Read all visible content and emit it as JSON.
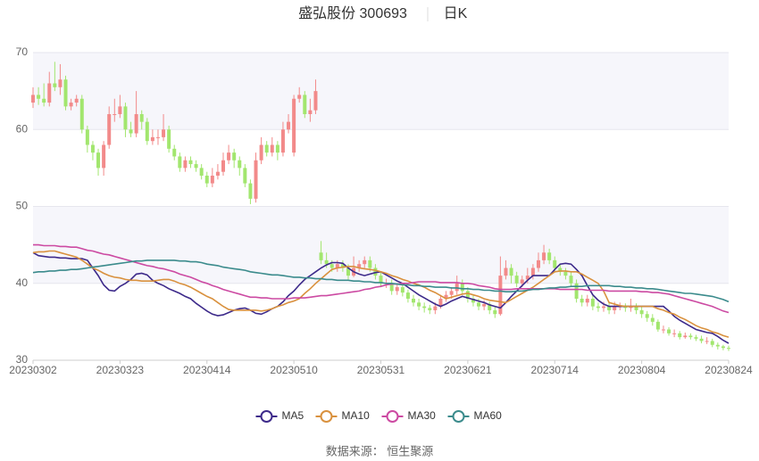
{
  "chart_data": {
    "type": "candlestick",
    "title": "盛弘股份 300693",
    "subtitle": "日K",
    "source": "数据来源： 恒生聚源",
    "categories": [
      "20230302",
      null,
      null,
      null,
      null,
      null,
      null,
      null,
      null,
      null,
      null,
      null,
      null,
      null,
      null,
      null,
      "20230323",
      null,
      null,
      null,
      null,
      null,
      null,
      null,
      null,
      null,
      null,
      null,
      null,
      null,
      null,
      null,
      "20230414",
      null,
      null,
      null,
      null,
      null,
      null,
      null,
      null,
      null,
      null,
      null,
      null,
      null,
      null,
      null,
      "20230510",
      null,
      null,
      null,
      null,
      null,
      null,
      null,
      null,
      null,
      null,
      null,
      null,
      null,
      null,
      null,
      "20230531",
      null,
      null,
      null,
      null,
      null,
      null,
      null,
      null,
      null,
      null,
      null,
      null,
      null,
      null,
      null,
      "20230621",
      null,
      null,
      null,
      null,
      null,
      null,
      null,
      null,
      null,
      null,
      null,
      null,
      null,
      null,
      null,
      "20230714",
      null,
      null,
      null,
      null,
      null,
      null,
      null,
      null,
      null,
      null,
      null,
      null,
      null,
      null,
      null,
      "20230804",
      null,
      null,
      null,
      null,
      null,
      null,
      null,
      null,
      null,
      null,
      null,
      null,
      null,
      null,
      null,
      "20230824"
    ],
    "up_color": "#f28a8a",
    "down_color": "#a2e66e",
    "candles": {
      "open": [
        63.5,
        64.5,
        64,
        63.5,
        66,
        65.5,
        66.5,
        63,
        63.5,
        64,
        60,
        58,
        57,
        55,
        58,
        62,
        62,
        63,
        60,
        59.5,
        62,
        61,
        58.5,
        59,
        59,
        60,
        57.5,
        56.5,
        55,
        56,
        55.5,
        55,
        54,
        53,
        54,
        54.5,
        56,
        57,
        56,
        55,
        53,
        51,
        56,
        58,
        57,
        58,
        57,
        60,
        57,
        64,
        64.5,
        62,
        62.5,
        44,
        43,
        42.5,
        42,
        42.5,
        42,
        41,
        42,
        42.5,
        43,
        42,
        41,
        40,
        40,
        39,
        39.5,
        38.8,
        38,
        37.5,
        37,
        36.8,
        36.5,
        37,
        38,
        38.5,
        39,
        40,
        39,
        38,
        37.5,
        37,
        37.3,
        36.5,
        36,
        41,
        42,
        41,
        40,
        40.5,
        41,
        42,
        43,
        44,
        43,
        42,
        41.5,
        41,
        40,
        38,
        37.5,
        38,
        37,
        36.8,
        37,
        36.5,
        37,
        37,
        36.8,
        37,
        36.5,
        36,
        35.5,
        35,
        34,
        34,
        33.5,
        33.5,
        33,
        33.2,
        33,
        32.8,
        32.5,
        32.5,
        32,
        31.8,
        31.6
      ],
      "close": [
        64.5,
        64,
        63.5,
        66,
        65.5,
        66.5,
        63,
        63.5,
        64,
        60,
        58,
        57,
        55,
        58,
        62,
        62,
        63,
        60,
        59.5,
        62,
        61,
        58.5,
        59,
        59,
        60,
        57.5,
        56.5,
        55,
        56,
        55.5,
        55,
        54,
        53,
        54,
        54.5,
        56,
        57,
        56,
        55,
        53,
        51,
        56,
        58,
        57,
        58,
        57,
        60,
        61,
        64,
        64.5,
        62,
        62.5,
        65,
        43,
        42.5,
        42,
        42.5,
        42,
        41,
        42,
        42.5,
        43,
        42,
        41,
        40,
        40,
        39,
        39.5,
        38.8,
        38,
        37.5,
        37,
        36.8,
        36.5,
        37,
        38,
        38.5,
        39,
        40,
        39,
        38,
        37.5,
        37,
        37.3,
        36.5,
        36,
        41,
        42,
        41,
        40,
        40.5,
        41,
        42,
        43,
        44,
        43,
        42,
        41.5,
        41,
        40,
        38,
        37.5,
        38,
        37,
        36.8,
        37,
        36.5,
        37,
        37,
        36.8,
        37,
        36.5,
        36,
        35.5,
        35,
        34,
        34,
        33.5,
        33.5,
        33,
        33.2,
        33,
        32.8,
        32.5,
        32.5,
        32,
        31.8,
        31.6,
        31.5
      ],
      "low": [
        62.8,
        63.2,
        63,
        63,
        65,
        64.5,
        62.5,
        62.5,
        63,
        59.5,
        57,
        56,
        54,
        54,
        57.5,
        61,
        61.5,
        59,
        59,
        59,
        60,
        58,
        58,
        58,
        58.5,
        57,
        56,
        54.5,
        54.5,
        55,
        54.5,
        53.5,
        52.5,
        52.5,
        53.5,
        54,
        55.5,
        55,
        54,
        52.5,
        50.3,
        50.5,
        55.5,
        56.5,
        56.5,
        56,
        56.5,
        59.5,
        56.5,
        63.5,
        61.5,
        61,
        62,
        42.5,
        42,
        41.5,
        41.5,
        41.5,
        40.5,
        40.8,
        41.5,
        42,
        41.5,
        40.5,
        39.5,
        39.4,
        38.5,
        38.5,
        38.3,
        37.5,
        37,
        36.5,
        36.2,
        36,
        36,
        36.7,
        37.6,
        38,
        38.5,
        38.5,
        37.5,
        37,
        36.5,
        36.5,
        36,
        35.5,
        35.8,
        40.5,
        40,
        39.5,
        39.5,
        40,
        40.5,
        41.5,
        42.5,
        42.5,
        41.5,
        41,
        40.5,
        39.5,
        37.5,
        37,
        37,
        36.5,
        36.3,
        36.3,
        36,
        36,
        36.5,
        36.3,
        36.3,
        36,
        35.5,
        35,
        34.5,
        33.7,
        33.5,
        33.2,
        33,
        32.7,
        32.8,
        32.7,
        32.5,
        32.2,
        32.1,
        31.7,
        31.4,
        31.3,
        31.2
      ],
      "high": [
        65.5,
        65.5,
        66,
        67.5,
        68.8,
        68.5,
        67,
        64,
        64.5,
        64.5,
        60.5,
        58.5,
        57.5,
        58.5,
        63,
        64,
        64.5,
        63.5,
        61,
        65,
        62.5,
        61.5,
        60,
        60,
        62,
        60.5,
        58,
        57,
        56.5,
        56.5,
        56,
        55.5,
        54.5,
        55,
        55.5,
        57,
        58,
        57.5,
        56.5,
        55.5,
        53.5,
        57,
        59,
        58.5,
        59,
        58.5,
        61,
        62,
        64.5,
        65.5,
        65,
        64,
        66.5,
        45.5,
        44,
        43,
        43,
        43,
        42.5,
        43.5,
        43,
        43.5,
        43.5,
        42.5,
        41.5,
        40.6,
        40.5,
        40,
        40,
        39.2,
        38.5,
        38,
        37.5,
        37.2,
        37.5,
        38.5,
        39,
        39.5,
        41,
        40.5,
        39.5,
        38.4,
        38,
        37.8,
        37.6,
        37,
        43.5,
        43,
        42.5,
        41.5,
        41,
        42,
        42.5,
        44,
        45,
        44.5,
        43.5,
        42.5,
        42,
        41.5,
        40.5,
        38.5,
        38.5,
        38.4,
        37.5,
        37.6,
        37.5,
        37.6,
        37.5,
        37.4,
        38,
        37.4,
        37,
        36.4,
        36,
        35.3,
        34.5,
        34.3,
        34,
        33.8,
        33.6,
        33.5,
        33.3,
        33.2,
        33,
        32.8,
        32.3,
        32,
        31.9
      ]
    },
    "series": [
      {
        "name": "MA5",
        "color": "#3d2a8a",
        "values": [
          44,
          43.6,
          43.5,
          43.4,
          43.4,
          43.3,
          43.3,
          43.2,
          43.2,
          43.2,
          43,
          42,
          41,
          39.8,
          39.1,
          39,
          39.6,
          40,
          40.5,
          41.2,
          41.3,
          41.1,
          40.4,
          40,
          39.7,
          39.3,
          39,
          38.7,
          38.3,
          38,
          37.4,
          36.9,
          36.4,
          36,
          35.8,
          35.9,
          36.2,
          36.5,
          36.7,
          36.8,
          36.5,
          36.1,
          36,
          36.3,
          36.7,
          37,
          37.6,
          38.4,
          39,
          39.8,
          40.5,
          41,
          41.5,
          42,
          42.4,
          42.7,
          42.7,
          42.6,
          42,
          41.5,
          41.2,
          41,
          41.2,
          41.4,
          41.5,
          41.1,
          40.7,
          40.3,
          40,
          39.5,
          39,
          38.5,
          38.1,
          37.7,
          37.3,
          37,
          37.3,
          37.7,
          38,
          38.3,
          38.1,
          37.9,
          37.7,
          37.5,
          37.2,
          37,
          36.8,
          37.5,
          38.3,
          39,
          39.7,
          40.4,
          41,
          41,
          41,
          41,
          41.8,
          42.5,
          42.6,
          42.5,
          41.8,
          41,
          39.7,
          38.5,
          37.8,
          37.3,
          37,
          37,
          37,
          37,
          37,
          37,
          37,
          37,
          37,
          37,
          37,
          36.4,
          35.7,
          35.2,
          34.8,
          34.4,
          34,
          33.8,
          33.6,
          33.5,
          33.1,
          32.6,
          32.2
        ]
      },
      {
        "name": "MA10",
        "color": "#d9913e",
        "values": [
          44,
          44.1,
          44.1,
          44.2,
          44.2,
          44,
          43.8,
          43.6,
          43.4,
          43,
          42.5,
          42,
          41.7,
          41.3,
          41,
          40.8,
          40.7,
          40.5,
          40.4,
          40.4,
          40.3,
          40.3,
          40.3,
          40.4,
          40.5,
          40.5,
          40.3,
          40,
          39.8,
          39.5,
          39.1,
          38.7,
          38.3,
          38,
          37.5,
          37,
          36.6,
          36.5,
          36.5,
          36.5,
          36.5,
          36.5,
          36.4,
          36.5,
          36.7,
          37,
          37.2,
          37.5,
          37.7,
          38,
          38.7,
          39.3,
          40,
          40.6,
          41.2,
          41.8,
          42,
          42.1,
          42.2,
          42.2,
          42,
          41.9,
          41.8,
          41.7,
          41.5,
          41.3,
          41,
          40.8,
          40.5,
          40.3,
          40,
          39.8,
          39.5,
          39.1,
          38.8,
          38.4,
          38,
          38.2,
          38.4,
          38.6,
          38.7,
          38.5,
          38.3,
          38,
          37.8,
          37.7,
          37.6,
          37.5,
          37.9,
          38.3,
          38.7,
          39.1,
          39.5,
          40,
          40.5,
          41,
          41.5,
          41.6,
          41.6,
          41.5,
          41.5,
          41.2,
          40.8,
          40.4,
          40,
          39,
          37.5,
          37.3,
          37.1,
          37,
          37,
          37,
          37,
          37,
          37,
          36.7,
          36.5,
          36.2,
          36,
          35.6,
          35.3,
          34.9,
          34.5,
          34.2,
          34,
          33.7,
          33.5,
          33.2,
          33
        ]
      },
      {
        "name": "MA30",
        "color": "#cc4aa2",
        "values": [
          45,
          45,
          44.9,
          44.9,
          44.9,
          44.8,
          44.8,
          44.7,
          44.7,
          44.5,
          44.3,
          44.2,
          44,
          43.8,
          43.7,
          43.5,
          43.3,
          43.1,
          42.9,
          42.7,
          42.5,
          42.3,
          42.2,
          42,
          41.9,
          41.7,
          41.5,
          41.2,
          41,
          40.8,
          40.5,
          40.2,
          40,
          39.7,
          39.5,
          39.2,
          39,
          38.8,
          38.6,
          38.4,
          38.2,
          38.2,
          38.1,
          38.1,
          38,
          38,
          38,
          38,
          38.1,
          38.1,
          38.1,
          38.2,
          38.3,
          38.4,
          38.4,
          38.5,
          38.6,
          38.7,
          38.8,
          38.9,
          39,
          39.2,
          39.3,
          39.5,
          39.6,
          39.8,
          39.9,
          39.9,
          40,
          40,
          40.1,
          40.2,
          40.2,
          40.2,
          40.2,
          40.1,
          40.1,
          40.1,
          40.1,
          40,
          40,
          39.9,
          39.7,
          39.6,
          39.5,
          39.3,
          39.2,
          39.2,
          39.2,
          39.3,
          39.3,
          39.3,
          39.3,
          39.3,
          39.3,
          39.3,
          39.3,
          39.2,
          39.2,
          39.2,
          39.2,
          39.2,
          39.1,
          39.1,
          39.1,
          39.1,
          39,
          39,
          39,
          39,
          39,
          39,
          38.9,
          38.9,
          38.8,
          38.8,
          38.7,
          38.6,
          38.4,
          38.2,
          38,
          37.8,
          37.6,
          37.4,
          37.2,
          37,
          36.7,
          36.4,
          36.2
        ]
      },
      {
        "name": "MA60",
        "color": "#3b8b8c",
        "values": [
          41.4,
          41.5,
          41.5,
          41.6,
          41.6,
          41.7,
          41.7,
          41.8,
          41.8,
          41.9,
          42,
          42.1,
          42.2,
          42.3,
          42.4,
          42.5,
          42.6,
          42.7,
          42.8,
          42.9,
          42.9,
          43,
          43,
          43,
          43,
          43,
          43,
          42.9,
          42.9,
          42.8,
          42.8,
          42.7,
          42.5,
          42.4,
          42.3,
          42.1,
          42,
          41.9,
          41.8,
          41.7,
          41.5,
          41.4,
          41.3,
          41.2,
          41.1,
          41.1,
          41,
          40.9,
          40.8,
          40.8,
          40.7,
          40.7,
          40.6,
          40.6,
          40.5,
          40.5,
          40.4,
          40.4,
          40.4,
          40.3,
          40.3,
          40.2,
          40.2,
          40.1,
          40.1,
          40,
          40,
          39.9,
          39.8,
          39.8,
          39.7,
          39.7,
          39.6,
          39.6,
          39.5,
          39.5,
          39.5,
          39.4,
          39.4,
          39.3,
          39.3,
          39.2,
          39.2,
          39.1,
          39.1,
          39,
          39,
          38.9,
          38.9,
          39,
          39,
          39.1,
          39.2,
          39.2,
          39.3,
          39.4,
          39.4,
          39.5,
          39.5,
          39.6,
          39.6,
          39.6,
          39.7,
          39.7,
          39.7,
          39.7,
          39.7,
          39.6,
          39.6,
          39.5,
          39.5,
          39.4,
          39.4,
          39.3,
          39.3,
          39.2,
          39.1,
          39,
          38.9,
          38.8,
          38.7,
          38.7,
          38.6,
          38.5,
          38.4,
          38.3,
          38.1,
          37.9,
          37.6
        ]
      }
    ],
    "ylim": [
      30,
      70
    ],
    "yticks": [
      30,
      40,
      50,
      60,
      70
    ],
    "grid": true
  }
}
